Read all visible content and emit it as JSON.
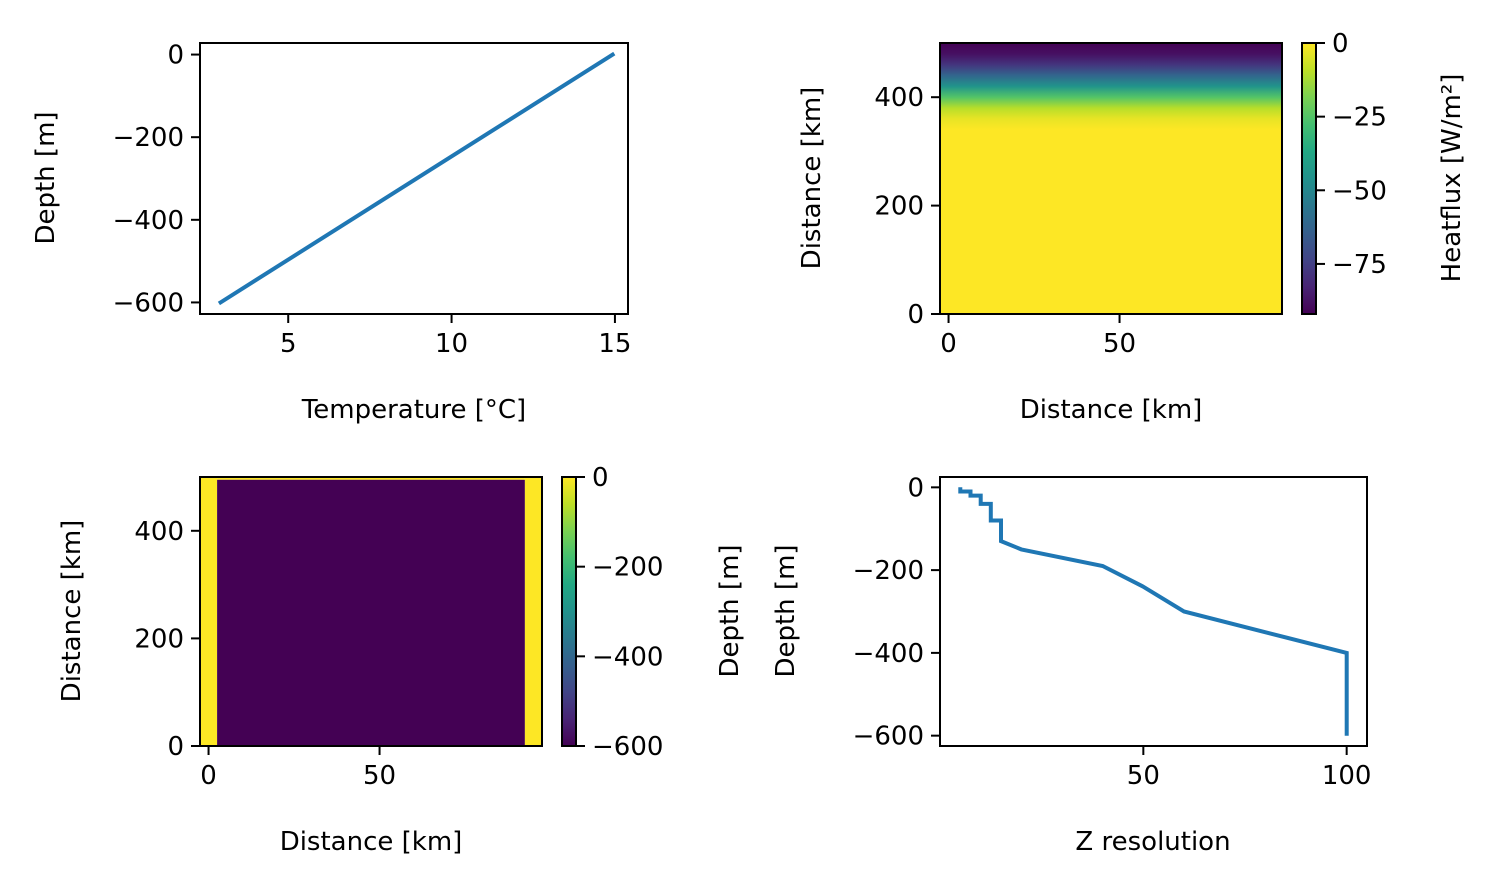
{
  "chart_data": [
    {
      "type": "line",
      "xlabel": "Temperature [°C]",
      "ylabel": "Depth [m]",
      "xlim": [
        2.3,
        15.4
      ],
      "ylim": [
        -628,
        28
      ],
      "xticks": [
        5,
        10,
        15
      ],
      "yticks": [
        0,
        -200,
        -400,
        -600
      ],
      "xtick_labels": [
        "5",
        "10",
        "15"
      ],
      "ytick_labels": [
        "0",
        "−200",
        "−400",
        "−600"
      ],
      "color": "#1f77b4",
      "x": [
        2.93,
        14.93
      ],
      "y": [
        -600,
        0
      ]
    },
    {
      "type": "heatmap",
      "xlabel": "Distance [km]",
      "ylabel": "Distance [km]",
      "xlim": [
        -2.5,
        97.5
      ],
      "ylim": [
        0,
        500
      ],
      "xticks": [
        0,
        50
      ],
      "yticks": [
        0,
        200,
        400
      ],
      "xtick_labels": [
        "0",
        "50"
      ],
      "ytick_labels": [
        "0",
        "200",
        "400"
      ],
      "colormap": "viridis",
      "colorbar": {
        "label": "Heatflux [W/m²]",
        "range": [
          -92,
          0
        ],
        "ticks": [
          0,
          -25,
          -50,
          -75
        ],
        "tick_labels": [
          "0",
          "−25",
          "−50",
          "−75"
        ]
      },
      "profile_y": [
        0,
        340,
        360,
        380,
        400,
        420,
        440,
        460,
        480,
        500
      ],
      "profile_value": [
        0,
        0,
        -3,
        -10,
        -25,
        -45,
        -62,
        -78,
        -88,
        -92
      ]
    },
    {
      "type": "heatmap",
      "xlabel": "Distance [km]",
      "ylabel": "Distance [km]",
      "xlim": [
        -2.5,
        97.5
      ],
      "ylim": [
        0,
        500
      ],
      "xticks": [
        0,
        50
      ],
      "yticks": [
        0,
        200,
        400
      ],
      "xtick_labels": [
        "0",
        "50"
      ],
      "ytick_labels": [
        "0",
        "200",
        "400"
      ],
      "colormap": "viridis",
      "colorbar": {
        "label": "Depth [m]",
        "range": [
          -600,
          0
        ],
        "ticks": [
          0,
          -200,
          -400,
          -600
        ],
        "tick_labels": [
          "0",
          "−200",
          "−400",
          "−600"
        ]
      },
      "regions": [
        {
          "x0": -2.5,
          "x1": 2.5,
          "y0": 0,
          "y1": 500,
          "value": 0
        },
        {
          "x0": 2.5,
          "x1": 92.5,
          "y0": 0,
          "y1": 495,
          "value": -600
        },
        {
          "x0": 92.5,
          "x1": 97.5,
          "y0": 0,
          "y1": 500,
          "value": 0
        },
        {
          "x0": 2.5,
          "x1": 92.5,
          "y0": 495,
          "y1": 500,
          "value": 0
        }
      ]
    },
    {
      "type": "line",
      "xlabel": "Z resolution",
      "ylabel": "Depth [m]",
      "xlim": [
        0,
        105
      ],
      "ylim": [
        -625,
        25
      ],
      "xticks": [
        50,
        100
      ],
      "yticks": [
        0,
        -200,
        -400,
        -600
      ],
      "xtick_labels": [
        "50",
        "100"
      ],
      "ytick_labels": [
        "0",
        "−200",
        "−400",
        "−600"
      ],
      "color": "#1f77b4",
      "x": [
        5,
        5,
        7.5,
        7.5,
        10,
        10,
        12.5,
        12.5,
        15,
        15,
        20,
        40,
        50,
        60,
        100,
        100
      ],
      "y": [
        0,
        -10,
        -10,
        -20,
        -20,
        -40,
        -40,
        -80,
        -80,
        -130,
        -150,
        -190,
        -240,
        -300,
        -400,
        -600
      ]
    }
  ]
}
